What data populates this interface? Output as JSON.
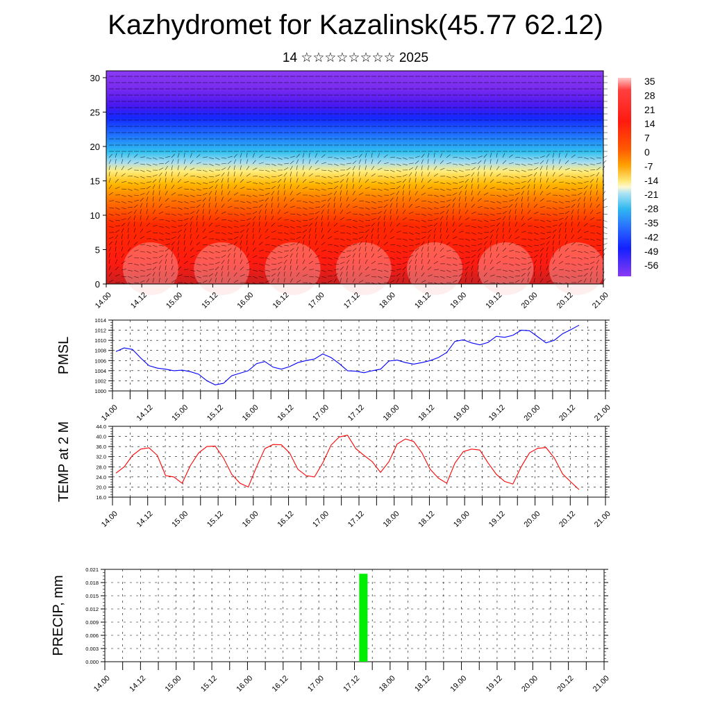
{
  "header": {
    "title": "Kazhydromet for Kazalinsk(45.77 62.12)",
    "subtitle": "14 ☆☆☆☆☆☆☆☆ 2025"
  },
  "chart_data": [
    {
      "type": "heatmap",
      "name": "vertical-cross-section",
      "x_tick_labels": [
        "14.00",
        "14.12",
        "15.00",
        "15.12",
        "16.00",
        "16.12",
        "17.00",
        "17.12",
        "18.00",
        "18.12",
        "19.00",
        "19.12",
        "20.00",
        "20.12",
        "21.00"
      ],
      "y_ticks": [
        0,
        5,
        10,
        15,
        20,
        25,
        30
      ],
      "ylim": [
        0,
        31
      ],
      "colorbar_labels": [
        "35",
        "28",
        "21",
        "14",
        "7",
        "0",
        "-7",
        "-14",
        "-21",
        "-28",
        "-35",
        "-42",
        "-49",
        "-56"
      ],
      "colorbar_range": [
        -60,
        38
      ],
      "notes_visible": "temperature shading with wind barbs; warm near surface, coldest aloft at ~25-30"
    },
    {
      "type": "line",
      "name": "PMSL",
      "ylabel": "PMSL",
      "ylim": [
        1000,
        1014
      ],
      "y_ticks": [
        "1000",
        "1002",
        "1004",
        "1006",
        "1008",
        "1010",
        "1012",
        "1014"
      ],
      "x_tick_labels": [
        "14.00",
        "14.12",
        "15.00",
        "15.12",
        "16.00",
        "16.12",
        "17.00",
        "17.12",
        "18.00",
        "18.12",
        "19.00",
        "19.12",
        "20.00",
        "20.12",
        "21.00"
      ],
      "color": "#0000ff",
      "series": [
        {
          "values": [
            1007.8,
            1008.5,
            1008.2,
            1006.5,
            1005,
            1004.5,
            1004.3,
            1004,
            1004.1,
            1003.8,
            1003.3,
            1002,
            1001.2,
            1001.5,
            1003,
            1003.5,
            1004,
            1005.4,
            1005.8,
            1004.7,
            1004.3,
            1004.8,
            1005.6,
            1006,
            1006.3,
            1007.3,
            1006.6,
            1005.4,
            1004,
            1003.9,
            1003.6,
            1004,
            1004.3,
            1005.9,
            1006.1,
            1005.6,
            1005.3,
            1005.6,
            1006,
            1006.6,
            1007.6,
            1009.8,
            1010.1,
            1009.5,
            1009.1,
            1009.6,
            1010.8,
            1010.6,
            1011,
            1012,
            1011.9,
            1010.7,
            1009.5,
            1010,
            1011.3,
            1012.1,
            1013
          ]
        }
      ]
    },
    {
      "type": "line",
      "name": "TEMP at 2 M",
      "ylabel": "TEMP at 2 M",
      "ylim": [
        16,
        44
      ],
      "y_ticks": [
        "16.0",
        "20.0",
        "24.0",
        "28.0",
        "32.0",
        "36.0",
        "40.0",
        "44.0"
      ],
      "x_tick_labels": [
        "14.00",
        "14.12",
        "15.00",
        "15.12",
        "16.00",
        "16.12",
        "17.00",
        "17.12",
        "18.00",
        "18.12",
        "19.00",
        "19.12",
        "20.00",
        "20.12",
        "21.00"
      ],
      "color": "#ff0000",
      "series": [
        {
          "values": [
            25.5,
            28,
            32.5,
            35,
            35.5,
            32.5,
            24.5,
            24,
            21.5,
            28.5,
            33.5,
            36,
            36.2,
            31.5,
            25,
            21.5,
            20,
            28,
            35.2,
            36.8,
            36.7,
            33.5,
            27,
            24.5,
            24,
            29.5,
            36.5,
            39.8,
            40.5,
            35.2,
            32.5,
            30,
            25.8,
            30,
            37,
            39,
            38,
            33.5,
            27,
            23.5,
            21.5,
            29.5,
            34,
            35,
            34.6,
            29.5,
            25,
            22.2,
            21.2,
            28,
            33.5,
            35.3,
            35.6,
            31.5,
            25.2,
            22,
            19
          ]
        }
      ]
    },
    {
      "type": "bar",
      "name": "PRECIP, mm",
      "ylabel": "PRECIP, mm",
      "ylim": [
        0,
        0.021
      ],
      "y_ticks": [
        "0.000",
        "0.003",
        "0.006",
        "0.009",
        "0.012",
        "0.015",
        "0.018",
        "0.021"
      ],
      "x_tick_labels": [
        "14.00",
        "14.12",
        "15.00",
        "15.12",
        "16.00",
        "16.12",
        "17.00",
        "17.12",
        "18.00",
        "18.12",
        "19.00",
        "19.12",
        "20.00",
        "20.12",
        "21.00"
      ],
      "color": "#00ee00",
      "bars": [
        {
          "x_hours": 87,
          "value": 0.02
        }
      ]
    }
  ]
}
